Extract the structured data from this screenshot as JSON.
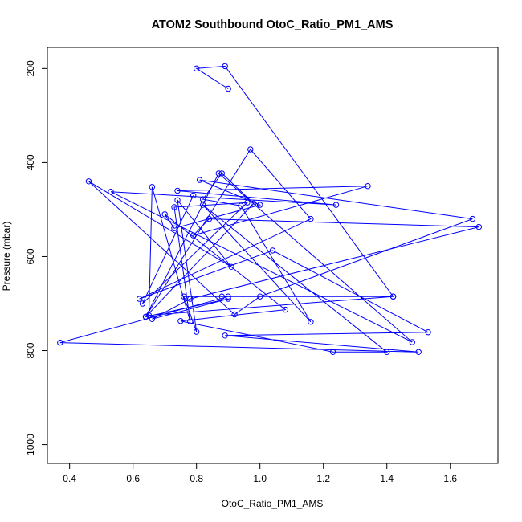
{
  "chart_data": {
    "type": "line",
    "title": "ATOM2 Southbound OtoC_Ratio_PM1_AMS",
    "xlabel": "OtoC_Ratio_PM1_AMS",
    "ylabel": "Pressure (mbar)",
    "xlim": [
      0.33,
      1.75
    ],
    "ylim": [
      1040,
      155
    ],
    "y_reversed": true,
    "grid": false,
    "legend": "none",
    "x_ticks": [
      0.4,
      0.6,
      0.8,
      1.0,
      1.2,
      1.4,
      1.6
    ],
    "x_tick_labels": [
      "0.4",
      "0.6",
      "0.8",
      "1.0",
      "1.2",
      "1.4",
      "1.6"
    ],
    "y_ticks": [
      200,
      400,
      600,
      800,
      1000
    ],
    "y_tick_labels": [
      "200",
      "400",
      "600",
      "800",
      "1000"
    ],
    "colors": {
      "series": "#0000ff"
    },
    "series": [
      {
        "x": [
          0.9,
          0.8,
          0.89,
          1.42,
          0.9,
          0.37,
          1.5,
          0.89,
          1.53,
          1.04,
          0.62,
          1.16,
          0.97,
          0.64,
          0.87,
          1.48,
          0.53,
          1.24,
          0.74,
          1.34,
          0.79,
          0.84,
          1.69,
          0.78,
          0.66,
          0.9,
          0.64,
          0.98,
          0.88,
          0.82,
          0.94,
          1.16,
          0.82,
          1.4,
          1.23,
          0.75,
          1.08,
          0.7,
          0.73,
          1.0,
          0.81,
          1.67,
          1.0,
          0.92,
          0.46,
          0.91,
          0.74,
          0.8,
          0.76,
          0.88,
          1.42,
          0.65,
          0.66,
          0.78,
          0.73,
          0.96,
          0.63,
          0.79
        ],
        "y": [
          243,
          200,
          195,
          685,
          685,
          783,
          803,
          768,
          761,
          587,
          690,
          520,
          372,
          728,
          423,
          782,
          462,
          490,
          460,
          450,
          555,
          520,
          537,
          690,
          733,
          690,
          728,
          487,
          423,
          478,
          492,
          739,
          490,
          803,
          803,
          737,
          713,
          510,
          540,
          490,
          437,
          520,
          685,
          723,
          440,
          622,
          480,
          760,
          685,
          685,
          685,
          725,
          452,
          738,
          495,
          485,
          700,
          470
        ]
      }
    ]
  }
}
